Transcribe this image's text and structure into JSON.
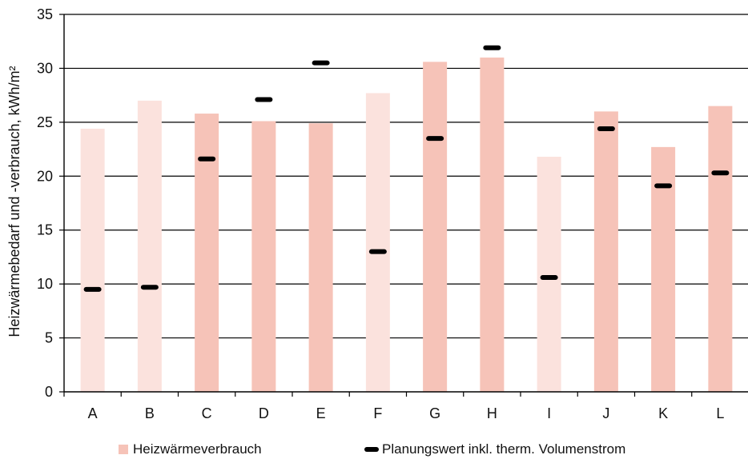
{
  "chart_data": {
    "type": "bar",
    "categories": [
      "A",
      "B",
      "C",
      "D",
      "E",
      "F",
      "G",
      "H",
      "I",
      "J",
      "K",
      "L"
    ],
    "series": [
      {
        "name": "Heizwärmeverbrauch",
        "values": [
          24.4,
          27.0,
          25.8,
          25.1,
          24.9,
          27.7,
          30.6,
          31.0,
          21.8,
          26.0,
          22.7,
          26.5
        ],
        "shades": [
          "light",
          "light",
          "dark",
          "dark",
          "dark",
          "light",
          "dark",
          "dark",
          "light",
          "dark",
          "dark",
          "dark"
        ]
      },
      {
        "name": "Planungswert inkl. therm. Volumenstrom",
        "values": [
          9.5,
          9.7,
          21.6,
          27.1,
          30.5,
          13.0,
          23.5,
          31.9,
          10.6,
          24.4,
          19.1,
          20.3
        ]
      }
    ],
    "xlabel": "",
    "ylabel": "Heizwärmebedarf und -verbrauch, kWh/m²",
    "ylim": [
      0,
      35
    ],
    "yticks": [
      0,
      5,
      10,
      15,
      20,
      25,
      30,
      35
    ],
    "grid": true,
    "legend_position": "bottom",
    "colors": {
      "bar_light": "#fbe2dd",
      "bar_dark": "#f6c3b8",
      "marker": "#000000",
      "grid": "#000000"
    }
  }
}
